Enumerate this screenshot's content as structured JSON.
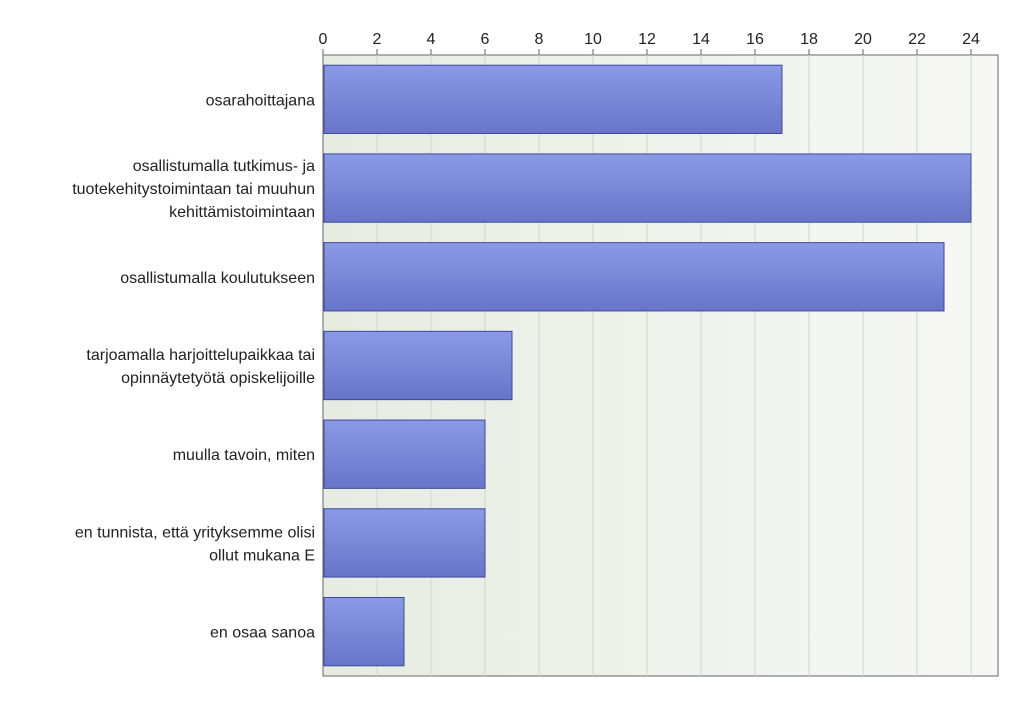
{
  "chart_data": {
    "type": "bar",
    "orientation": "horizontal",
    "categories": [
      [
        "osarahoittajana"
      ],
      [
        "osallistumalla tutkimus- ja",
        "tuotekehitystoimintaan tai muuhun",
        "kehittämistoimintaan"
      ],
      [
        "osallistumalla koulutukseen"
      ],
      [
        "tarjoamalla harjoittelupaikkaa tai",
        "opinnäytetyötä opiskelijoille"
      ],
      [
        "muulla tavoin, miten"
      ],
      [
        "en tunnista, että yrityksemme olisi",
        "ollut mukana E"
      ],
      [
        "en osaa sanoa"
      ]
    ],
    "values": [
      17,
      24,
      23,
      7,
      6,
      6,
      3
    ],
    "xlim": [
      0,
      25
    ],
    "ticks": [
      "0",
      "2",
      "4",
      "6",
      "8",
      "10",
      "12",
      "14",
      "16",
      "18",
      "20",
      "22",
      "24"
    ],
    "axis_position": "top",
    "grid": true,
    "title": "",
    "xlabel": "",
    "ylabel": "",
    "colors": {
      "bar_top": "#8a9ae6",
      "bar_bottom": "#6875c8",
      "bar_stroke": "#3f4a99",
      "plot_bg_left": "#e6ece2",
      "plot_bg_right": "#f7f8f5",
      "grid": "#d2d6cf",
      "axis": "#666666"
    }
  }
}
